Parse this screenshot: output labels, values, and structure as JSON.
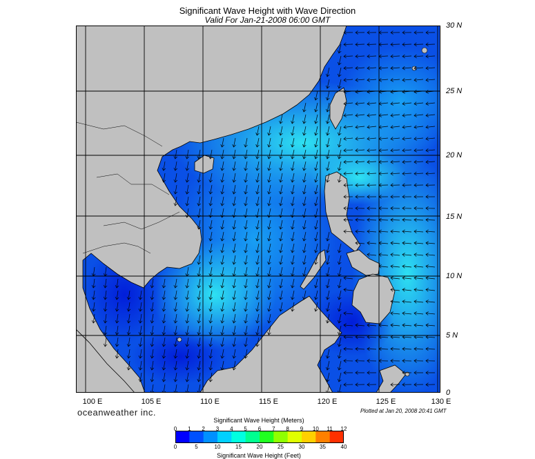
{
  "header": {
    "title": "Significant Wave Height with Wave Direction",
    "subtitle": "Valid For Jan-21-2008 06:00 GMT"
  },
  "map": {
    "lat_labels": [
      "30 N",
      "25 N",
      "20 N",
      "15 N",
      "10 N",
      "5 N",
      "0"
    ],
    "lon_labels": [
      "100 E",
      "105 E",
      "110 E",
      "115 E",
      "120 E",
      "125 E",
      "130 E"
    ],
    "lon_range": [
      99,
      130
    ],
    "lat_range": [
      0,
      30
    ],
    "land_color": "#c0c0c0",
    "sea_base_color": "#0a50e6",
    "high_wave_color": "#28dcf0"
  },
  "footer": {
    "brand": "oceanweather inc.",
    "plotted": "Plotted at Jan 20, 2008 20:41 GMT"
  },
  "legend": {
    "title_meters": "Significant Wave Height (Meters)",
    "title_feet": "Significant Wave Height (Feet)",
    "meters_ticks": [
      "0",
      "1",
      "2",
      "3",
      "4",
      "5",
      "6",
      "7",
      "8",
      "9",
      "10",
      "11",
      "12"
    ],
    "feet_ticks": [
      "0",
      "5",
      "10",
      "15",
      "20",
      "25",
      "30",
      "35",
      "40"
    ],
    "colors": [
      "#0000ff",
      "#0050ff",
      "#0090ff",
      "#00d0ff",
      "#00ffe0",
      "#00ff90",
      "#20ff20",
      "#90ff00",
      "#e0ff00",
      "#ffd000",
      "#ff8000",
      "#ff3000"
    ]
  }
}
